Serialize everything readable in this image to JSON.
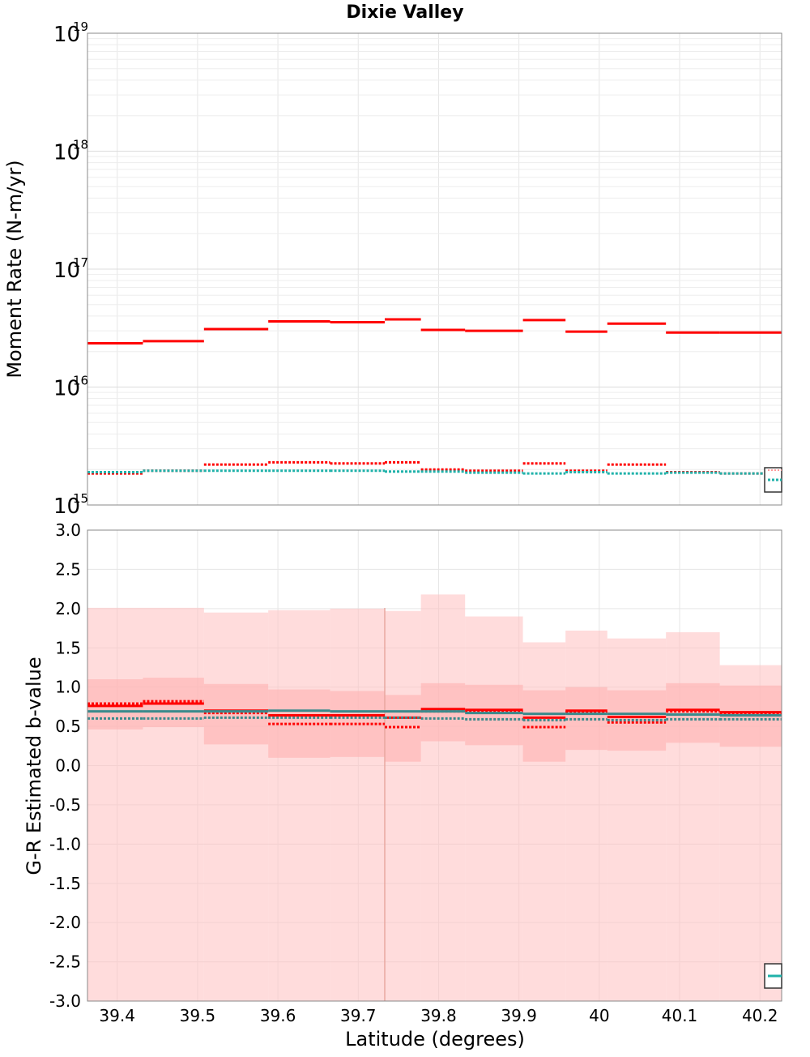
{
  "chart_data": [
    {
      "type": "line",
      "panel": "top",
      "title": "Dixie Valley",
      "xlabel": "",
      "ylabel": "Moment Rate (N-m/yr)",
      "yscale": "log",
      "ylim": [
        1000000000000000.0,
        1e+19
      ],
      "xlim": [
        39.363,
        40.227
      ],
      "y_ticks": [
        {
          "base": "10",
          "exp": "15",
          "value": 1000000000000000.0
        },
        {
          "base": "10",
          "exp": "16",
          "value": 1e+16
        },
        {
          "base": "10",
          "exp": "17",
          "value": 1e+17
        },
        {
          "base": "10",
          "exp": "18",
          "value": 1e+18
        },
        {
          "base": "10",
          "exp": "19",
          "value": 1e+19
        }
      ],
      "grid": true,
      "legend": "bottom-right",
      "series": [
        {
          "style": "solid",
          "color": "#ff0000",
          "steps": [
            [
              39.363,
              39.432,
              2.35e+16
            ],
            [
              39.432,
              39.508,
              2.45e+16
            ],
            [
              39.508,
              39.588,
              3.1e+16
            ],
            [
              39.588,
              39.665,
              3.6e+16
            ],
            [
              39.665,
              39.733,
              3.55e+16
            ],
            [
              39.733,
              39.778,
              3.75e+16
            ],
            [
              39.778,
              39.833,
              3.05e+16
            ],
            [
              39.833,
              39.905,
              3e+16
            ],
            [
              39.905,
              39.958,
              3.7e+16
            ],
            [
              39.958,
              40.01,
              2.95e+16
            ],
            [
              40.01,
              40.083,
              3.45e+16
            ],
            [
              40.083,
              40.15,
              2.9e+16
            ],
            [
              40.15,
              40.227,
              2.9e+16
            ]
          ]
        },
        {
          "style": "dotted",
          "color": "#ff0000",
          "steps": [
            [
              39.363,
              39.432,
              1850000000000000.0
            ],
            [
              39.432,
              39.508,
              1950000000000000.0
            ],
            [
              39.508,
              39.588,
              2200000000000000.0
            ],
            [
              39.588,
              39.665,
              2300000000000000.0
            ],
            [
              39.665,
              39.733,
              2250000000000000.0
            ],
            [
              39.733,
              39.778,
              2300000000000000.0
            ],
            [
              39.778,
              39.833,
              2000000000000000.0
            ],
            [
              39.833,
              39.905,
              1950000000000000.0
            ],
            [
              39.905,
              39.958,
              2250000000000000.0
            ],
            [
              39.958,
              40.01,
              1950000000000000.0
            ],
            [
              40.01,
              40.083,
              2200000000000000.0
            ],
            [
              40.083,
              40.15,
              1900000000000000.0
            ],
            [
              40.15,
              40.227,
              1850000000000000.0
            ]
          ]
        },
        {
          "style": "dotted",
          "color": "#20b2aa",
          "steps": [
            [
              39.363,
              39.432,
              1900000000000000.0
            ],
            [
              39.432,
              39.508,
              1950000000000000.0
            ],
            [
              39.508,
              39.588,
              1950000000000000.0
            ],
            [
              39.588,
              39.665,
              1950000000000000.0
            ],
            [
              39.665,
              39.733,
              1950000000000000.0
            ],
            [
              39.733,
              39.778,
              1920000000000000.0
            ],
            [
              39.778,
              39.833,
              1920000000000000.0
            ],
            [
              39.833,
              39.905,
              1880000000000000.0
            ],
            [
              39.905,
              39.958,
              1850000000000000.0
            ],
            [
              39.958,
              40.01,
              1900000000000000.0
            ],
            [
              40.01,
              40.083,
              1850000000000000.0
            ],
            [
              40.083,
              40.15,
              1880000000000000.0
            ],
            [
              40.15,
              40.227,
              1850000000000000.0
            ]
          ]
        }
      ]
    },
    {
      "type": "line",
      "panel": "bottom",
      "title": "",
      "xlabel": "Latitude (degrees)",
      "ylabel": "G-R Estimated b-value",
      "ylim": [
        -3.0,
        3.0
      ],
      "xlim": [
        39.363,
        40.227
      ],
      "y_ticks": [
        "-3.0",
        "-2.5",
        "-2.0",
        "-1.5",
        "-1.0",
        "-0.5",
        "0.0",
        "0.5",
        "1.0",
        "1.5",
        "2.0",
        "2.5",
        "3.0"
      ],
      "x_ticks": [
        "39.4",
        "39.5",
        "39.6",
        "39.7",
        "39.8",
        "39.9",
        "40",
        "40.1",
        "40.2"
      ],
      "grid": true,
      "legend": "bottom-right",
      "bands": [
        {
          "color": "#ffc0c0",
          "opacity": 0.55,
          "steps": [
            [
              39.363,
              39.432,
              -3.0,
              2.01
            ],
            [
              39.432,
              39.508,
              -3.0,
              2.01
            ],
            [
              39.508,
              39.588,
              -3.0,
              1.95
            ],
            [
              39.588,
              39.665,
              -3.0,
              1.98
            ],
            [
              39.665,
              39.733,
              -3.0,
              2.0
            ],
            [
              39.733,
              39.778,
              -3.0,
              1.97
            ],
            [
              39.778,
              39.833,
              -3.0,
              2.18
            ],
            [
              39.833,
              39.905,
              -3.0,
              1.9
            ],
            [
              39.905,
              39.958,
              -3.0,
              1.57
            ],
            [
              39.958,
              40.01,
              -3.0,
              1.72
            ],
            [
              40.01,
              40.083,
              -3.0,
              1.62
            ],
            [
              40.083,
              40.15,
              -3.0,
              1.7
            ],
            [
              40.15,
              40.227,
              -3.0,
              1.28
            ]
          ]
        },
        {
          "color": "#ffb0b0",
          "opacity": 0.6,
          "steps": [
            [
              39.363,
              39.432,
              0.46,
              1.1
            ],
            [
              39.432,
              39.508,
              0.49,
              1.12
            ],
            [
              39.508,
              39.588,
              0.27,
              1.04
            ],
            [
              39.588,
              39.665,
              0.1,
              0.97
            ],
            [
              39.665,
              39.733,
              0.11,
              0.95
            ],
            [
              39.733,
              39.778,
              0.05,
              0.9
            ],
            [
              39.778,
              39.833,
              0.31,
              1.05
            ],
            [
              39.833,
              39.905,
              0.26,
              1.03
            ],
            [
              39.905,
              39.958,
              0.05,
              0.96
            ],
            [
              39.958,
              40.01,
              0.2,
              1.0
            ],
            [
              40.01,
              40.083,
              0.19,
              0.96
            ],
            [
              40.083,
              40.15,
              0.29,
              1.05
            ],
            [
              40.15,
              40.227,
              0.24,
              1.02
            ]
          ]
        }
      ],
      "series": [
        {
          "style": "solid",
          "color": "#ff0000",
          "steps": [
            [
              39.363,
              39.432,
              0.76
            ],
            [
              39.432,
              39.508,
              0.79
            ],
            [
              39.508,
              39.588,
              0.7
            ],
            [
              39.588,
              39.665,
              0.64
            ],
            [
              39.665,
              39.733,
              0.64
            ],
            [
              39.733,
              39.778,
              0.61
            ],
            [
              39.778,
              39.833,
              0.72
            ],
            [
              39.833,
              39.905,
              0.71
            ],
            [
              39.905,
              39.958,
              0.61
            ],
            [
              39.958,
              40.01,
              0.7
            ],
            [
              40.01,
              40.083,
              0.62
            ],
            [
              40.083,
              40.15,
              0.71
            ],
            [
              40.15,
              40.227,
              0.68
            ]
          ]
        },
        {
          "style": "dotted",
          "color": "#ff0000",
          "steps": [
            [
              39.363,
              39.432,
              0.79
            ],
            [
              39.432,
              39.508,
              0.82
            ],
            [
              39.508,
              39.588,
              0.67
            ],
            [
              39.588,
              39.665,
              0.53
            ],
            [
              39.665,
              39.733,
              0.53
            ],
            [
              39.733,
              39.778,
              0.49
            ],
            [
              39.778,
              39.833,
              0.69
            ],
            [
              39.833,
              39.905,
              0.69
            ],
            [
              39.905,
              39.958,
              0.49
            ],
            [
              39.958,
              40.01,
              0.68
            ],
            [
              40.01,
              40.083,
              0.55
            ],
            [
              40.083,
              40.15,
              0.69
            ],
            [
              40.15,
              40.227,
              0.65
            ]
          ]
        },
        {
          "style": "solid",
          "color": "#3a8a8c",
          "steps": [
            [
              39.363,
              39.432,
              0.69
            ],
            [
              39.432,
              39.508,
              0.69
            ],
            [
              39.508,
              39.588,
              0.69
            ],
            [
              39.588,
              39.665,
              0.7
            ],
            [
              39.665,
              39.733,
              0.69
            ],
            [
              39.733,
              39.778,
              0.69
            ],
            [
              39.778,
              39.833,
              0.69
            ],
            [
              39.833,
              39.905,
              0.67
            ],
            [
              39.905,
              39.958,
              0.66
            ],
            [
              39.958,
              40.01,
              0.66
            ],
            [
              40.01,
              40.083,
              0.66
            ],
            [
              40.083,
              40.15,
              0.65
            ],
            [
              40.15,
              40.227,
              0.64
            ]
          ]
        },
        {
          "style": "dotted",
          "color": "#3a8a8c",
          "steps": [
            [
              39.363,
              39.432,
              0.6
            ],
            [
              39.432,
              39.508,
              0.6
            ],
            [
              39.508,
              39.588,
              0.61
            ],
            [
              39.588,
              39.665,
              0.61
            ],
            [
              39.665,
              39.733,
              0.61
            ],
            [
              39.733,
              39.778,
              0.61
            ],
            [
              39.778,
              39.833,
              0.6
            ],
            [
              39.833,
              39.905,
              0.59
            ],
            [
              39.905,
              39.958,
              0.58
            ],
            [
              39.958,
              40.01,
              0.59
            ],
            [
              40.01,
              40.083,
              0.58
            ],
            [
              40.083,
              40.15,
              0.59
            ],
            [
              40.15,
              40.227,
              0.59
            ]
          ]
        }
      ],
      "vertical_marker": {
        "x": 39.733,
        "color": "#e8a8a0"
      }
    }
  ]
}
